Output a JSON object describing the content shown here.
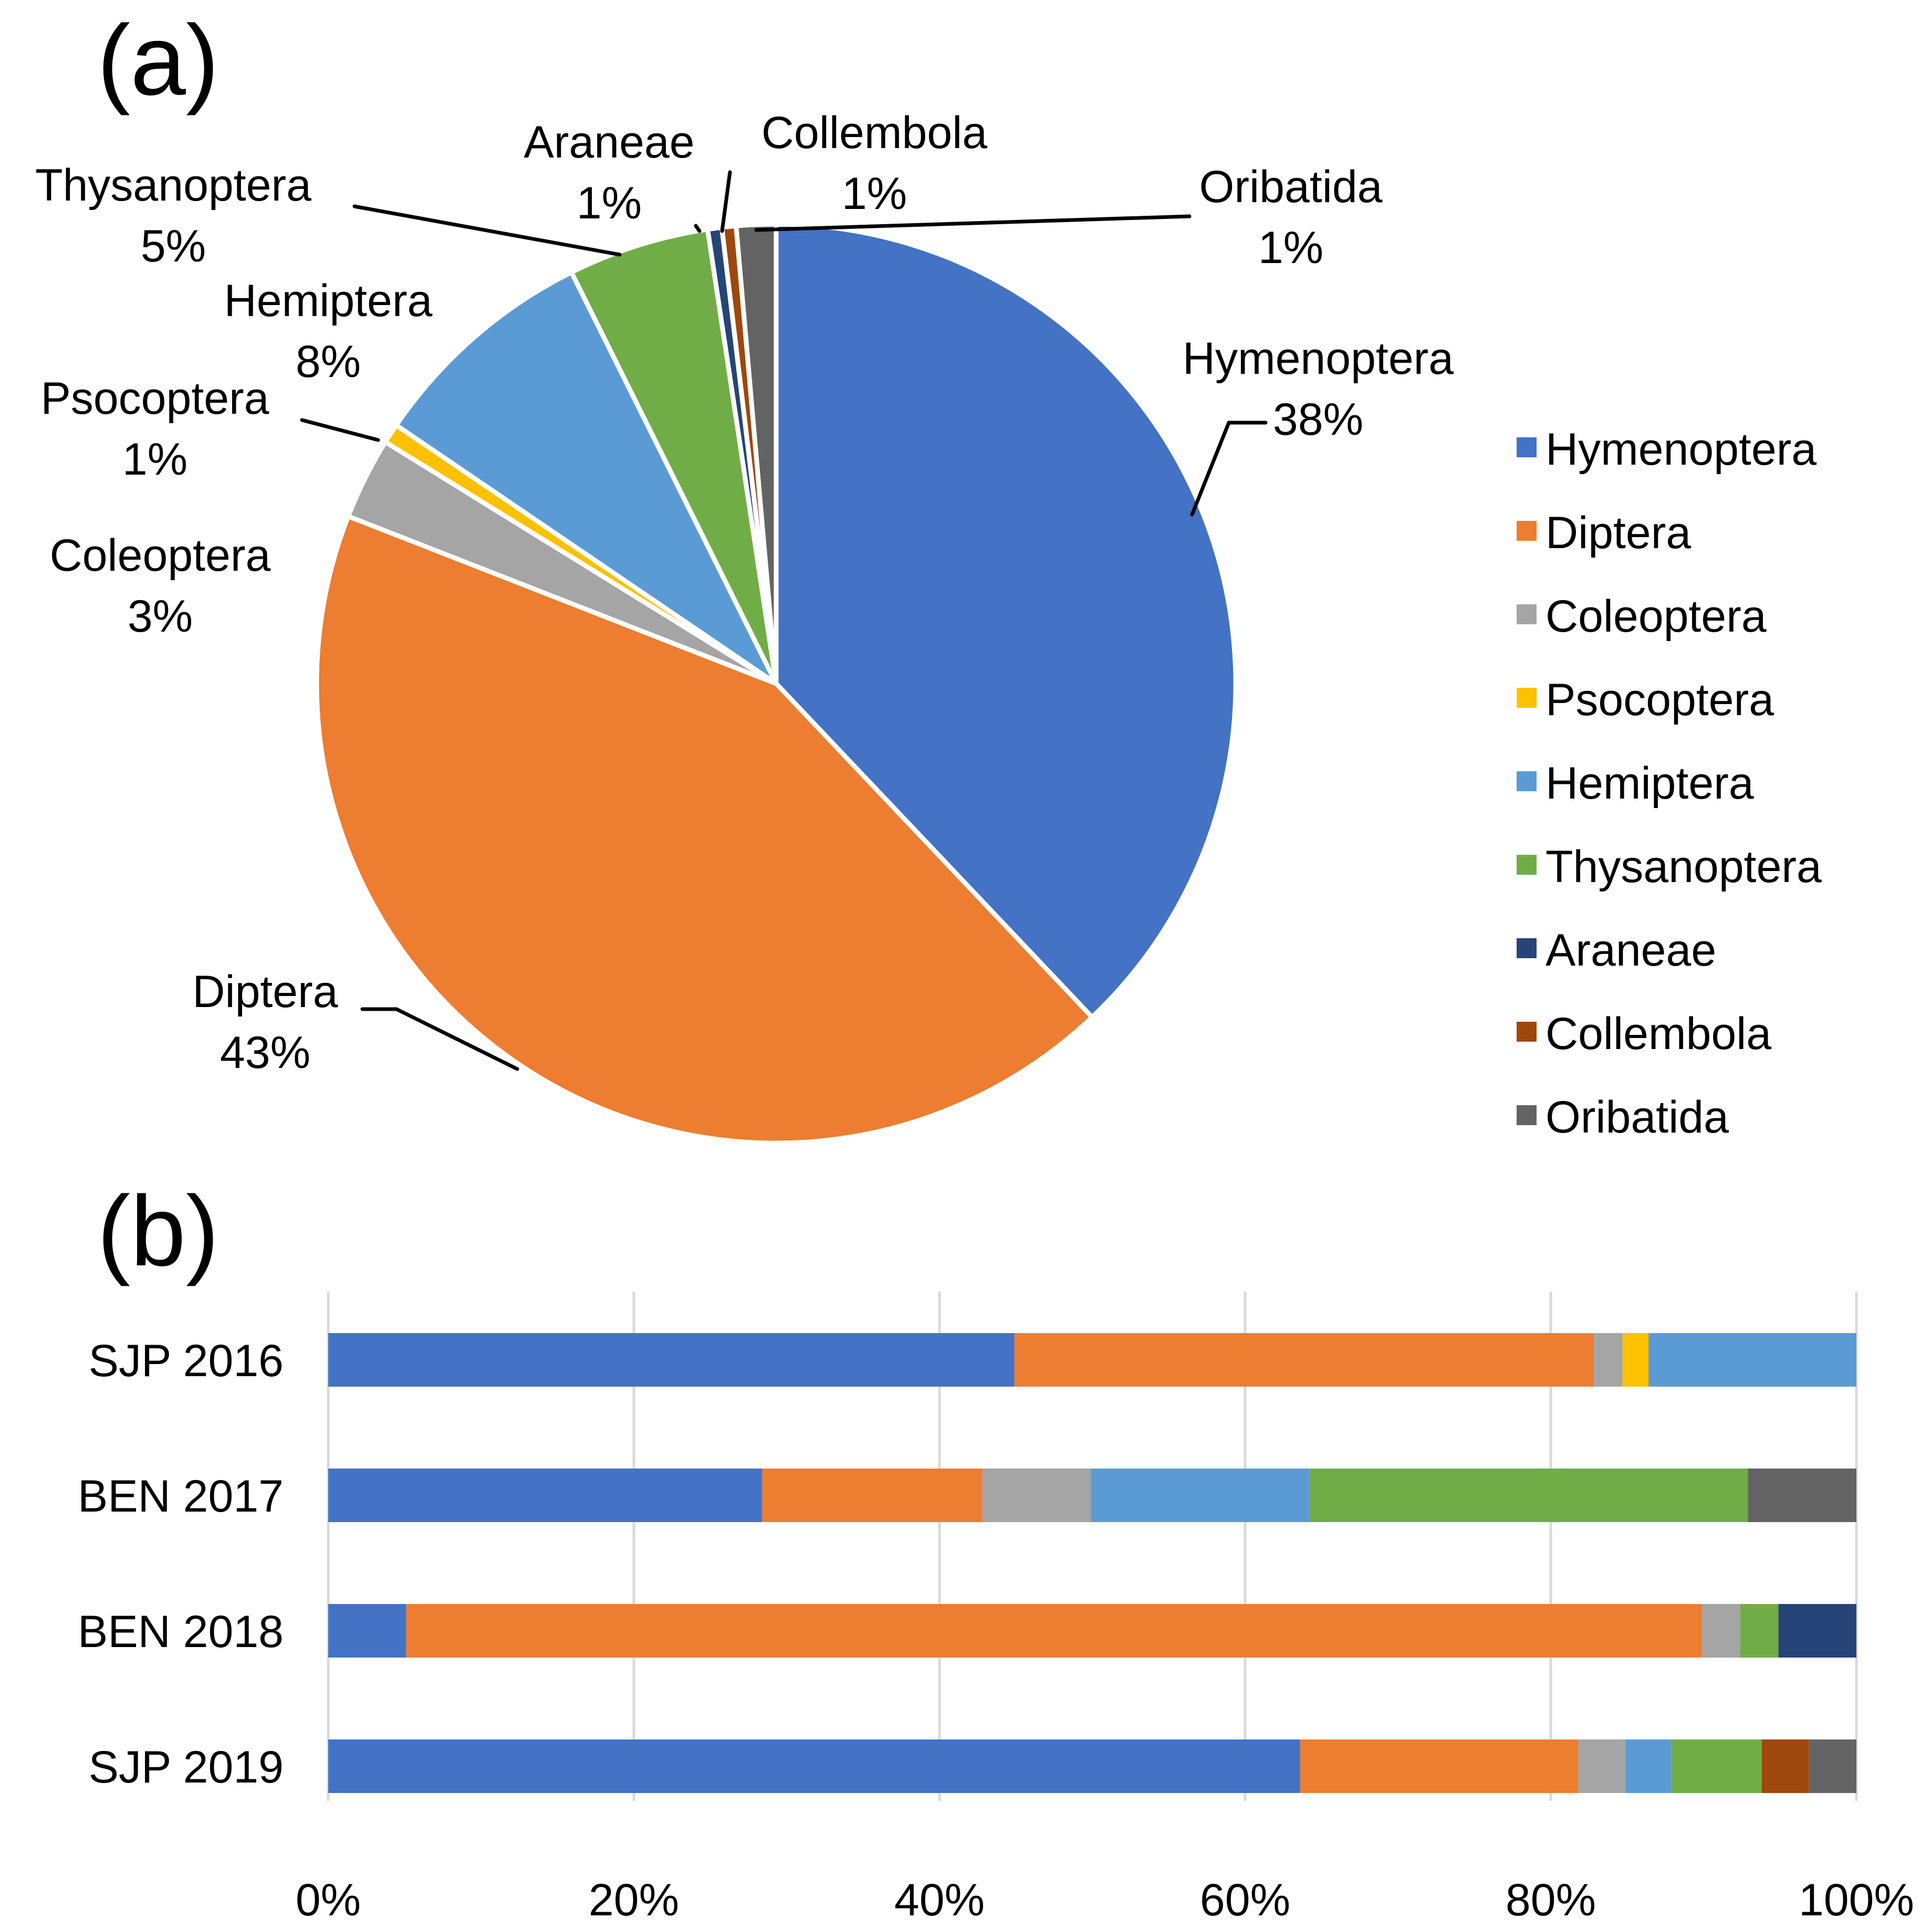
{
  "panel_labels": {
    "a": "(a)",
    "b": "(b)"
  },
  "chart_data": [
    {
      "type": "pie",
      "panel": "(a)",
      "title": "",
      "categories": [
        "Hymenoptera",
        "Diptera",
        "Coleoptera",
        "Psocoptera",
        "Hemiptera",
        "Thysanoptera",
        "Araneae",
        "Collembola",
        "Oribatida"
      ],
      "values": [
        38.2,
        43.3,
        2.9,
        0.7,
        8.2,
        5.0,
        0.5,
        0.5,
        1.4
      ],
      "data_labels": [
        "38%",
        "43%",
        "3%",
        "1%",
        "8%",
        "5%",
        "1%",
        "1%",
        "1%"
      ],
      "colors": [
        "#4472C4",
        "#ED7D31",
        "#A5A5A5",
        "#FFC000",
        "#5B9BD5",
        "#70AD47",
        "#264478",
        "#9E480E",
        "#636363"
      ],
      "start_angle_deg": 0,
      "direction": "clockwise",
      "legend": {
        "position": "right",
        "entries": [
          "Hymenoptera",
          "Diptera",
          "Coleoptera",
          "Psocoptera",
          "Hemiptera",
          "Thysanoptera",
          "Araneae",
          "Collembola",
          "Oribatida"
        ]
      }
    },
    {
      "type": "bar",
      "panel": "(b)",
      "orientation": "horizontal",
      "stacked": "percent",
      "title": "",
      "xlabel": "",
      "ylabel": "",
      "categories": [
        "SJP 2016",
        "BEN 2017",
        "BEN 2018",
        "SJP 2019"
      ],
      "xlim": [
        0,
        100
      ],
      "xticks": [
        "0%",
        "20%",
        "40%",
        "60%",
        "80%",
        "100%"
      ],
      "grid": true,
      "series": [
        {
          "name": "Hymenoptera",
          "color": "#4472C4",
          "values": [
            44.9,
            28.4,
            5.1,
            63.6
          ]
        },
        {
          "name": "Diptera",
          "color": "#ED7D31",
          "values": [
            37.9,
            14.4,
            84.8,
            18.2
          ]
        },
        {
          "name": "Coleoptera",
          "color": "#A5A5A5",
          "values": [
            1.9,
            7.1,
            2.5,
            3.1
          ]
        },
        {
          "name": "Psocoptera",
          "color": "#FFC000",
          "values": [
            1.7,
            0.0,
            0.0,
            0.0
          ]
        },
        {
          "name": "Hemiptera",
          "color": "#5B9BD5",
          "values": [
            13.6,
            14.3,
            0.0,
            3.0
          ]
        },
        {
          "name": "Thysanoptera",
          "color": "#70AD47",
          "values": [
            0.0,
            28.7,
            2.5,
            5.9
          ]
        },
        {
          "name": "Araneae",
          "color": "#264478",
          "values": [
            0.0,
            0.0,
            5.1,
            0.0
          ]
        },
        {
          "name": "Collembola",
          "color": "#9E480E",
          "values": [
            0.0,
            0.0,
            0.0,
            3.1
          ]
        },
        {
          "name": "Oribatida",
          "color": "#636363",
          "values": [
            0.0,
            7.1,
            0.0,
            3.1
          ]
        }
      ]
    }
  ]
}
